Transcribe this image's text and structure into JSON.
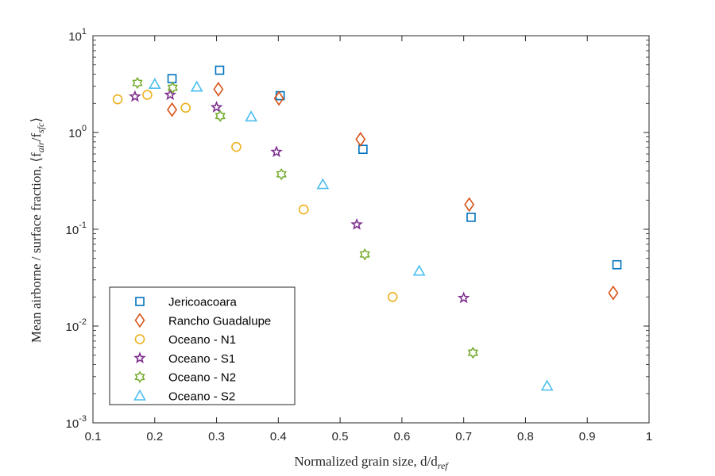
{
  "chart_data": {
    "type": "scatter",
    "x_scale": "linear",
    "y_scale": "log",
    "xlim": [
      0.1,
      1
    ],
    "ylim": [
      0.001,
      10
    ],
    "x_ticks": [
      "0.1",
      "0.2",
      "0.3",
      "0.4",
      "0.5",
      "0.6",
      "0.7",
      "0.8",
      "0.9",
      "1"
    ],
    "y_ticks": [
      {
        "base": "10",
        "exp": "-3",
        "value": 0.001
      },
      {
        "base": "10",
        "exp": "-2",
        "value": 0.01
      },
      {
        "base": "10",
        "exp": "-1",
        "value": 0.1
      },
      {
        "base": "10",
        "exp": "0",
        "value": 1
      },
      {
        "base": "10",
        "exp": "1",
        "value": 10
      }
    ],
    "xlabel": "Normalized grain size, d/d",
    "xlabel_sub": "ref",
    "ylabel": "Mean airborne / surface fraction, ⟨f",
    "ylabel_sub1": "air",
    "ylabel_mid": "/f",
    "ylabel_sub2": "sfc",
    "ylabel_end": "⟩",
    "grid": false,
    "legend_position": "bottom-left",
    "series": [
      {
        "name": "Jericoacoara",
        "marker": "square",
        "color": "#0072BD",
        "points": [
          [
            0.228,
            3.6
          ],
          [
            0.305,
            4.4
          ],
          [
            0.403,
            2.4
          ],
          [
            0.537,
            0.67
          ],
          [
            0.712,
            0.133
          ],
          [
            0.948,
            0.043
          ]
        ]
      },
      {
        "name": "Rancho Guadalupe",
        "marker": "diamond",
        "color": "#D95319",
        "points": [
          [
            0.228,
            1.72
          ],
          [
            0.303,
            2.8
          ],
          [
            0.401,
            2.25
          ],
          [
            0.533,
            0.85
          ],
          [
            0.709,
            0.18
          ],
          [
            0.942,
            0.022
          ]
        ]
      },
      {
        "name": "Oceano - N1",
        "marker": "circle",
        "color": "#EDB120",
        "points": [
          [
            0.14,
            2.2
          ],
          [
            0.188,
            2.45
          ],
          [
            0.25,
            1.8
          ],
          [
            0.332,
            0.71
          ],
          [
            0.441,
            0.16
          ],
          [
            0.585,
            0.02
          ]
        ]
      },
      {
        "name": "Oceano - S1",
        "marker": "star",
        "color": "#7E2F8E",
        "points": [
          [
            0.168,
            2.35
          ],
          [
            0.225,
            2.45
          ],
          [
            0.3,
            1.82
          ],
          [
            0.397,
            0.63
          ],
          [
            0.527,
            0.112
          ],
          [
            0.7,
            0.0195
          ]
        ]
      },
      {
        "name": "Oceano - N2",
        "marker": "hexagram",
        "color": "#77AC30",
        "points": [
          [
            0.172,
            3.25
          ],
          [
            0.229,
            2.9
          ],
          [
            0.306,
            1.48
          ],
          [
            0.405,
            0.37
          ],
          [
            0.54,
            0.055
          ],
          [
            0.715,
            0.0053
          ]
        ]
      },
      {
        "name": "Oceano - S2",
        "marker": "triangle",
        "color": "#4DBEEE",
        "points": [
          [
            0.2,
            3.15
          ],
          [
            0.268,
            2.95
          ],
          [
            0.356,
            1.45
          ],
          [
            0.472,
            0.29
          ],
          [
            0.628,
            0.037
          ],
          [
            0.835,
            0.0024
          ]
        ]
      }
    ]
  }
}
